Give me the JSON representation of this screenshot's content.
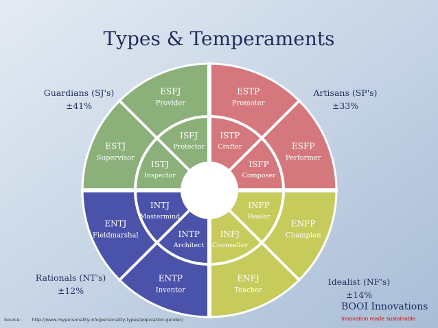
{
  "title": "Types & Temperaments",
  "groups": {
    "guardians": {
      "name": "Guardians (SJ's)",
      "pct": "±41%"
    },
    "artisans": {
      "name": "Artisans (SP's)",
      "pct": "±33%"
    },
    "rationals": {
      "name": "Rationals (NT's)",
      "pct": "±12%"
    },
    "idealists": {
      "name": "Idealist (NF's)",
      "pct": "±14%"
    }
  },
  "outer": [
    {
      "code": "ESFJ",
      "role": "Provider"
    },
    {
      "code": "ESTP",
      "role": "Promoter"
    },
    {
      "code": "ESFP",
      "role": "Performer"
    },
    {
      "code": "ENFP",
      "role": "Champion"
    },
    {
      "code": "ENFJ",
      "role": "Teacher"
    },
    {
      "code": "ENTP",
      "role": "Inventor"
    },
    {
      "code": "ENTJ",
      "role": "Fieldmarshal"
    },
    {
      "code": "ESTJ",
      "role": "Supervisor"
    }
  ],
  "inner": [
    {
      "code": "ISFJ",
      "role": "Protector"
    },
    {
      "code": "ISTP",
      "role": "Crafter"
    },
    {
      "code": "ISFP",
      "role": "Composer"
    },
    {
      "code": "INFP",
      "role": "Healer"
    },
    {
      "code": "INFJ",
      "role": "Counsellor"
    },
    {
      "code": "INTP",
      "role": "Architect"
    },
    {
      "code": "INTJ",
      "role": "Mastermind"
    },
    {
      "code": "ISTJ",
      "role": "Inspector"
    }
  ],
  "source": {
    "label": "Source:",
    "url": "http://www.mypersonality.info/personality-types/population-gender/"
  },
  "brand": "BOOI Innovations",
  "tagline": "Innovation made sustainable",
  "colors": {
    "guardians": "#8cb07a",
    "artisans": "#d4787d",
    "rationals": "#4a52aa",
    "idealists": "#c6cb5c",
    "title": "#1f2c5c",
    "tagline": "#d01a1a"
  }
}
